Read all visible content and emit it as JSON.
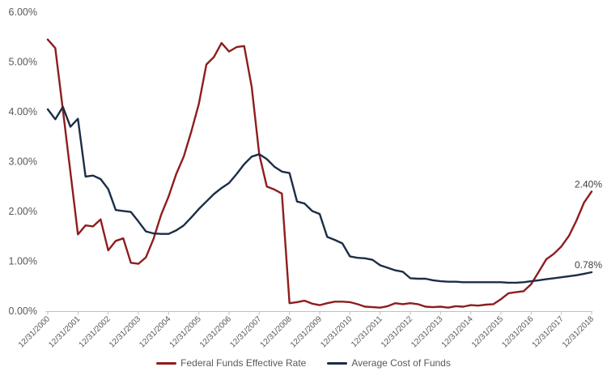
{
  "chart_data": {
    "type": "line",
    "title": "",
    "x_frequency": "quarterly",
    "x_tick_labels": [
      "12/31/2000",
      "12/31/2001",
      "12/31/2002",
      "12/31/2003",
      "12/31/2004",
      "12/31/2005",
      "12/31/2006",
      "12/31/2007",
      "12/31/2008",
      "12/31/2009",
      "12/31/2010",
      "12/31/2011",
      "12/31/2012",
      "12/31/2013",
      "12/31/2014",
      "12/31/2015",
      "12/31/2016",
      "12/31/2017",
      "12/31/2018"
    ],
    "y_tick_labels": [
      "0.00%",
      "1.00%",
      "2.00%",
      "3.00%",
      "4.00%",
      "5.00%",
      "6.00%"
    ],
    "ylim": [
      0,
      6
    ],
    "grid": "none",
    "legend_position": "bottom-center",
    "series": [
      {
        "name": "Federal Funds Effective Rate",
        "color": "#8e1d1d",
        "end_label": "2.40%",
        "values": [
          5.45,
          5.28,
          4.04,
          2.79,
          1.54,
          1.72,
          1.7,
          1.84,
          1.22,
          1.41,
          1.46,
          0.97,
          0.95,
          1.08,
          1.45,
          1.93,
          2.3,
          2.75,
          3.1,
          3.6,
          4.16,
          4.95,
          5.1,
          5.38,
          5.21,
          5.3,
          5.32,
          4.5,
          3.15,
          2.5,
          2.44,
          2.36,
          0.16,
          0.18,
          0.21,
          0.15,
          0.12,
          0.16,
          0.19,
          0.19,
          0.18,
          0.14,
          0.09,
          0.08,
          0.07,
          0.1,
          0.16,
          0.14,
          0.16,
          0.14,
          0.09,
          0.08,
          0.09,
          0.07,
          0.1,
          0.09,
          0.12,
          0.11,
          0.13,
          0.14,
          0.24,
          0.36,
          0.38,
          0.4,
          0.54,
          0.79,
          1.04,
          1.15,
          1.3,
          1.51,
          1.82,
          2.18,
          2.4
        ]
      },
      {
        "name": "Average Cost of Funds",
        "color": "#1c2d46",
        "end_label": "0.78%",
        "values": [
          4.05,
          3.85,
          4.1,
          3.7,
          3.86,
          2.7,
          2.72,
          2.65,
          2.45,
          2.03,
          2.01,
          1.99,
          1.8,
          1.6,
          1.56,
          1.55,
          1.55,
          1.62,
          1.72,
          1.88,
          2.05,
          2.2,
          2.35,
          2.47,
          2.57,
          2.75,
          2.95,
          3.1,
          3.15,
          3.05,
          2.9,
          2.8,
          2.77,
          2.2,
          2.16,
          2.01,
          1.95,
          1.49,
          1.43,
          1.36,
          1.1,
          1.07,
          1.06,
          1.03,
          0.92,
          0.87,
          0.82,
          0.79,
          0.66,
          0.65,
          0.65,
          0.62,
          0.6,
          0.59,
          0.59,
          0.58,
          0.58,
          0.58,
          0.58,
          0.58,
          0.58,
          0.57,
          0.57,
          0.58,
          0.6,
          0.62,
          0.64,
          0.66,
          0.68,
          0.7,
          0.72,
          0.75,
          0.78
        ]
      }
    ]
  },
  "colors": {
    "background": "#ffffff",
    "axis_line": "#c0c0c0",
    "axis_text": "#595959",
    "data_label_text": "#3f3f3f"
  }
}
